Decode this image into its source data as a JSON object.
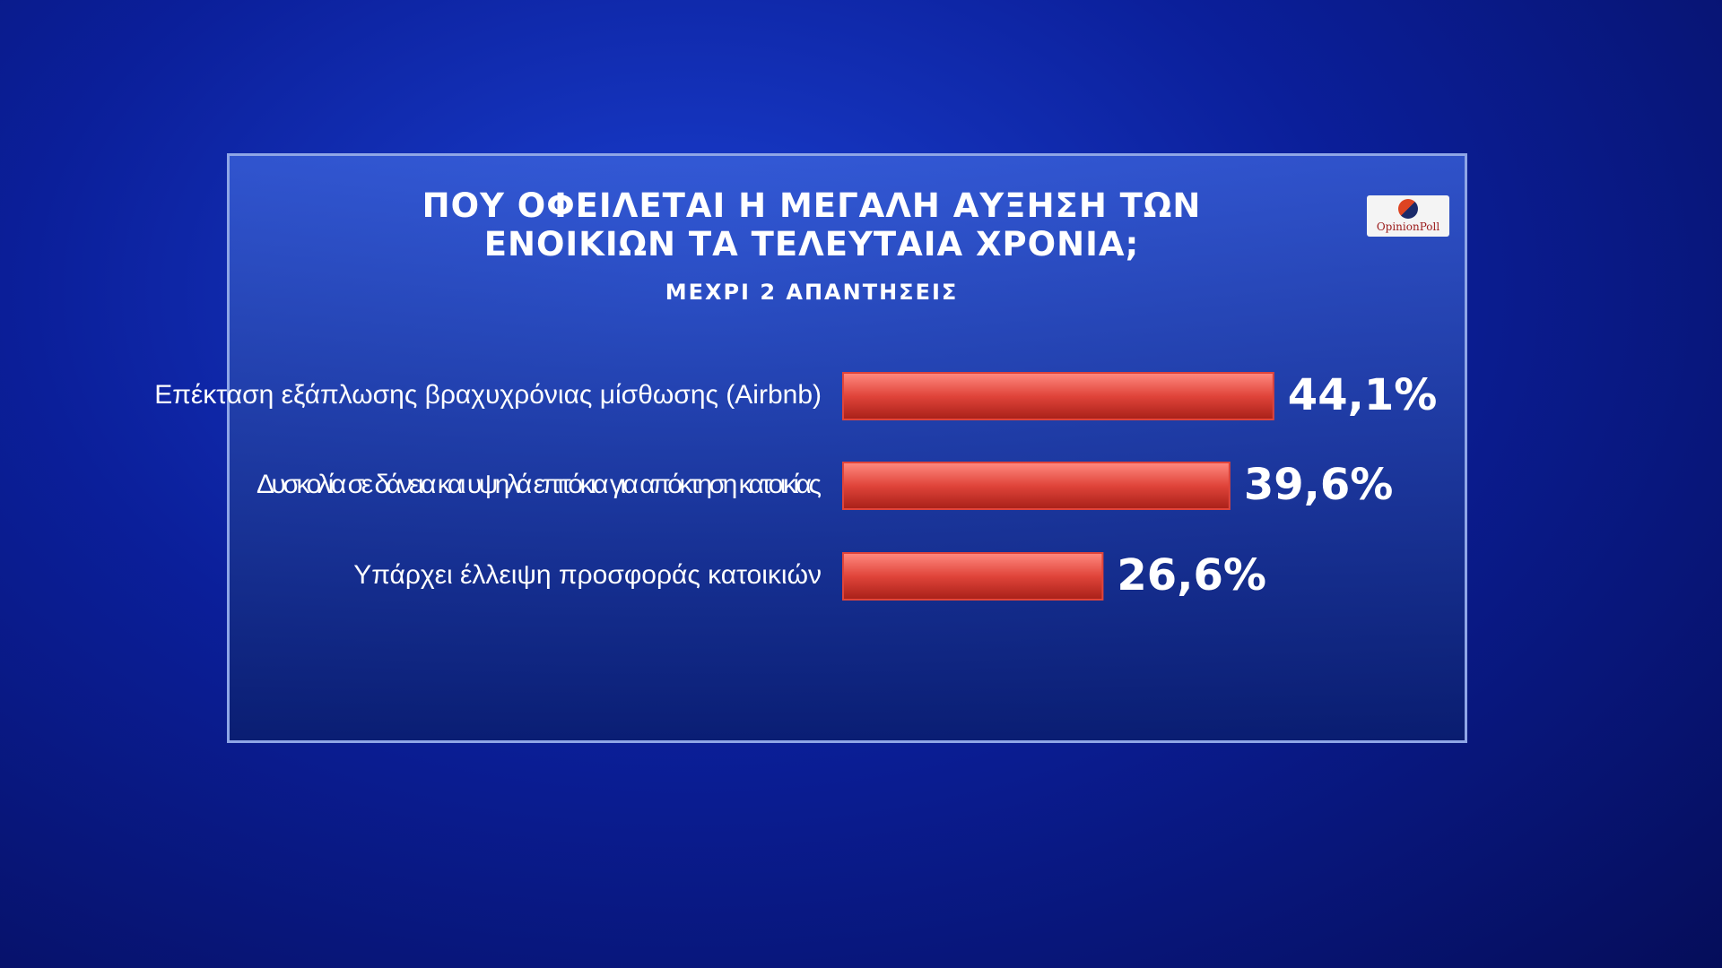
{
  "chart_data": {
    "type": "bar",
    "orientation": "horizontal",
    "title": "ΠΟΥ ΟΦΕΙΛΕΤΑΙ Η ΜΕΓΑΛΗ ΑΥΞΗΣΗ ΤΩΝ ΕΝΟΙΚΙΩΝ ΤΑ ΤΕΛΕΥΤΑΙΑ ΧΡΟΝΙΑ;",
    "subtitle": "ΜΕΧΡΙ 2 ΑΠΑΝΤΗΣΕΙΣ",
    "logo": "OpinionPoll",
    "categories": [
      "Επέκταση εξάπλωσης βραχυχρόνιας μίσθωσης (Airbnb)",
      "Δυσκολία σε δάνεια και υψηλά επιτόκια για απόκτηση κατοικίας",
      "Υπάρχει έλλειψη προσφοράς κατοικιών"
    ],
    "values": [
      44.1,
      39.6,
      26.6
    ],
    "value_labels": [
      "44,1%",
      "39,6%",
      "26,6%"
    ],
    "color": "#e0443a",
    "xlim": [
      0,
      50
    ]
  }
}
